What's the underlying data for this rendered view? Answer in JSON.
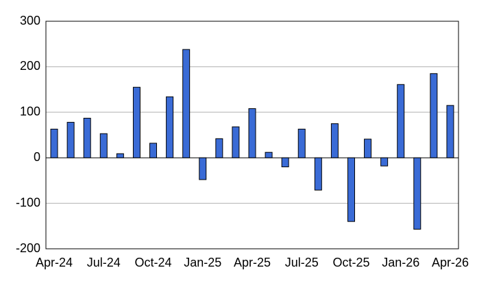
{
  "chart_data": {
    "type": "bar",
    "categories": [
      "Apr-24",
      null,
      null,
      "Jul-24",
      null,
      null,
      "Oct-24",
      null,
      null,
      "Jan-25",
      null,
      null,
      "Apr-25",
      null,
      null,
      "Jul-25",
      null,
      null,
      "Oct-25",
      null,
      null,
      "Jan-26",
      null,
      null,
      "Apr-26"
    ],
    "values": [
      63,
      78,
      87,
      53,
      9,
      155,
      32,
      134,
      238,
      -48,
      42,
      68,
      108,
      12,
      -20,
      63,
      -71,
      75,
      -140,
      41,
      -18,
      161,
      -157,
      185,
      115
    ],
    "color": "#3a6bd6",
    "ylim": [
      -200,
      300
    ],
    "yticks": [
      -200,
      -100,
      0,
      100,
      200,
      300
    ],
    "grid": true
  }
}
